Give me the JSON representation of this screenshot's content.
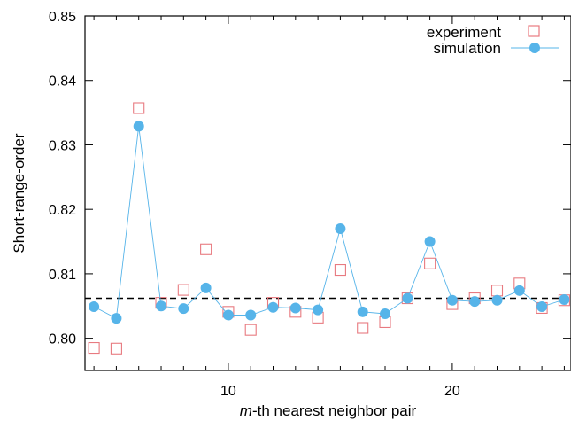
{
  "chart_data": {
    "type": "scatter",
    "xlabel_italic": "m",
    "xlabel_rest": "-th nearest neighbor pair",
    "ylabel": "Short-range-order",
    "xlim": [
      3.6,
      25.3
    ],
    "ylim": [
      0.795,
      0.85
    ],
    "xticks": [
      10,
      20
    ],
    "yticks": [
      0.8,
      0.81,
      0.82,
      0.83,
      0.84,
      0.85
    ],
    "yticks_labels": [
      "0.80",
      "0.81",
      "0.82",
      "0.83",
      "0.84",
      "0.85"
    ],
    "reference_line": 0.8062,
    "grid": false,
    "legend_position": "top-right",
    "series": [
      {
        "name": "experiment",
        "marker": "open-square",
        "color": "#e87a80",
        "x": [
          4,
          5,
          6,
          7,
          8,
          9,
          10,
          11,
          12,
          13,
          14,
          15,
          16,
          17,
          18,
          19,
          20,
          21,
          22,
          23,
          24,
          25
        ],
        "y": [
          0.7985,
          0.7984,
          0.8357,
          0.8055,
          0.8075,
          0.8138,
          0.8041,
          0.8013,
          0.8055,
          0.8041,
          0.8032,
          0.8106,
          0.8016,
          0.8025,
          0.8062,
          0.8116,
          0.8053,
          0.8062,
          0.8074,
          0.8085,
          0.8047,
          0.8059
        ]
      },
      {
        "name": "simulation",
        "marker": "filled-circle-line",
        "color": "#56b4e9",
        "x": [
          4,
          5,
          6,
          7,
          8,
          9,
          10,
          11,
          12,
          13,
          14,
          15,
          16,
          17,
          18,
          19,
          20,
          21,
          22,
          23,
          24,
          25
        ],
        "y": [
          0.8049,
          0.8031,
          0.8329,
          0.805,
          0.8046,
          0.8078,
          0.8036,
          0.8036,
          0.8048,
          0.8047,
          0.8044,
          0.817,
          0.8041,
          0.8038,
          0.8062,
          0.815,
          0.8059,
          0.8057,
          0.8059,
          0.8074,
          0.8049,
          0.806
        ]
      }
    ]
  }
}
